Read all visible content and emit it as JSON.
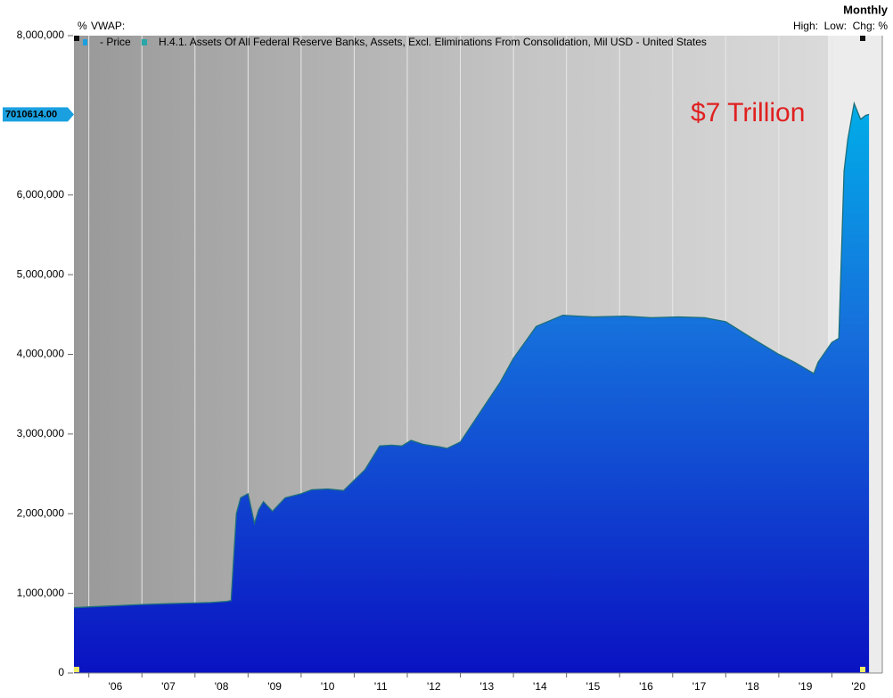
{
  "chart_data": {
    "type": "area",
    "title": "Monthly",
    "header_left": "%",
    "header_vwap": "VWAP:",
    "header_right": "High:  Low:  Chg: %",
    "price_legend": "- Price",
    "annotation": "$7 Trillion",
    "current_value": {
      "value": 7010614,
      "label": "7010614.00"
    },
    "x": [
      2005.72,
      2006.0,
      2006.5,
      2007.0,
      2007.5,
      2008.0,
      2008.3,
      2008.6,
      2008.68,
      2008.78,
      2008.86,
      2009.0,
      2009.12,
      2009.2,
      2009.29,
      2009.46,
      2009.7,
      2010.0,
      2010.2,
      2010.5,
      2010.8,
      2011.0,
      2011.2,
      2011.48,
      2011.7,
      2011.9,
      2012.07,
      2012.3,
      2012.6,
      2012.75,
      2013.0,
      2013.25,
      2013.5,
      2013.75,
      2014.0,
      2014.43,
      2014.93,
      2015.5,
      2016.1,
      2016.6,
      2017.1,
      2017.6,
      2018.0,
      2018.5,
      2019.0,
      2019.3,
      2019.66,
      2019.74,
      2020.0,
      2020.13,
      2020.23,
      2020.3,
      2020.42,
      2020.54,
      2020.64,
      2020.7
    ],
    "xlim": [
      2005.72,
      2020.95
    ],
    "xticks": [
      {
        "value": 2006.5,
        "label": "'06"
      },
      {
        "value": 2007.5,
        "label": "'07"
      },
      {
        "value": 2008.5,
        "label": "'08"
      },
      {
        "value": 2009.5,
        "label": "'09"
      },
      {
        "value": 2010.5,
        "label": "'10"
      },
      {
        "value": 2011.5,
        "label": "'11"
      },
      {
        "value": 2012.5,
        "label": "'12"
      },
      {
        "value": 2013.5,
        "label": "'13"
      },
      {
        "value": 2014.5,
        "label": "'14"
      },
      {
        "value": 2015.5,
        "label": "'15"
      },
      {
        "value": 2016.5,
        "label": "'16"
      },
      {
        "value": 2017.5,
        "label": "'17"
      },
      {
        "value": 2018.5,
        "label": "'18"
      },
      {
        "value": 2019.5,
        "label": "'19"
      },
      {
        "value": 2020.5,
        "label": "'20"
      }
    ],
    "ylim": [
      0,
      8000000
    ],
    "yticks": [
      0,
      {
        "value": 1000000,
        "label": "1,000,000"
      },
      {
        "value": 2000000,
        "label": "2,000,000"
      },
      {
        "value": 3000000,
        "label": "3,000,000"
      },
      {
        "value": 4000000,
        "label": "4,000,000"
      },
      {
        "value": 5000000,
        "label": "5,000,000"
      },
      {
        "value": 6000000,
        "label": "6,000,000"
      },
      {
        "value": 7000000,
        "label": "7,000,000"
      },
      {
        "value": 8000000,
        "label": "8,000,000"
      }
    ],
    "series": [
      {
        "name": "H.4.1. Assets Of All Federal Reserve Banks, Assets, Excl. Eliminations From Consolidation, Mil USD - United States",
        "color": "#1a6fd8",
        "values": [
          820000,
          830000,
          845000,
          860000,
          870000,
          880000,
          885000,
          900000,
          910000,
          2000000,
          2200000,
          2250000,
          1880000,
          2050000,
          2150000,
          2030000,
          2200000,
          2250000,
          2300000,
          2310000,
          2290000,
          2420000,
          2550000,
          2850000,
          2860000,
          2850000,
          2920000,
          2870000,
          2840000,
          2820000,
          2900000,
          3150000,
          3400000,
          3650000,
          3950000,
          4350000,
          4490000,
          4470000,
          4480000,
          4460000,
          4470000,
          4460000,
          4410000,
          4200000,
          4000000,
          3900000,
          3760000,
          3900000,
          4150000,
          4200000,
          6300000,
          6700000,
          7150000,
          6950000,
          7000000,
          7010614
        ]
      }
    ]
  }
}
